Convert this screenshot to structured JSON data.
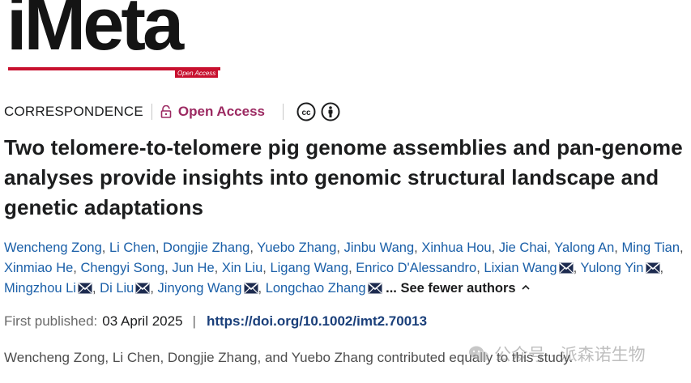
{
  "journal": {
    "logo_text": "iMeta",
    "logo_badge": "Open Access",
    "brand_color": "#c8102e"
  },
  "article": {
    "type": "CORRESPONDENCE",
    "access_label": "Open Access",
    "access_color": "#9c2a62",
    "license_icons": [
      "creative-commons-icon",
      "attribution-icon"
    ],
    "title": "Two telomere-to-telomere pig genome assemblies and pan-genome analyses provide insights into genomic structural landscape and genetic adaptations",
    "authors": [
      {
        "name": "Wencheng Zong",
        "email_icon": false
      },
      {
        "name": "Li Chen",
        "email_icon": false
      },
      {
        "name": "Dongjie Zhang",
        "email_icon": false
      },
      {
        "name": "Yuebo Zhang",
        "email_icon": false
      },
      {
        "name": "Jinbu Wang",
        "email_icon": false
      },
      {
        "name": "Xinhua Hou",
        "email_icon": false
      },
      {
        "name": "Jie Chai",
        "email_icon": false
      },
      {
        "name": "Yalong An",
        "email_icon": false
      },
      {
        "name": "Ming Tian",
        "email_icon": false
      },
      {
        "name": "Xinmiao He",
        "email_icon": false
      },
      {
        "name": "Chengyi Song",
        "email_icon": false
      },
      {
        "name": "Jun He",
        "email_icon": false
      },
      {
        "name": "Xin Liu",
        "email_icon": false
      },
      {
        "name": "Ligang Wang",
        "email_icon": false
      },
      {
        "name": "Enrico D'Alessandro",
        "email_icon": false
      },
      {
        "name": "Lixian Wang",
        "email_icon": true
      },
      {
        "name": "Yulong Yin",
        "email_icon": true
      },
      {
        "name": "Mingzhou Li",
        "email_icon": true
      },
      {
        "name": "Di Liu",
        "email_icon": true
      },
      {
        "name": "Jinyong Wang",
        "email_icon": true
      },
      {
        "name": "Longchao Zhang",
        "email_icon": true
      }
    ],
    "see_fewer_label": "... See fewer authors",
    "first_published_label": "First published:",
    "first_published_date": "03 April 2025",
    "separator": "|",
    "doi": "https://doi.org/10.1002/imt2.70013",
    "contribution_note": "Wencheng Zong, Li Chen, Dongjie Zhang, and Yuebo Zhang contributed equally to this study."
  },
  "watermark": {
    "text": "公众号 · 派森诺生物"
  },
  "colors": {
    "author_link": "#1a5fa8",
    "doi_link": "#1a3f7a",
    "text_dark": "#1c1d1e",
    "text_muted": "#6a6a6a"
  }
}
